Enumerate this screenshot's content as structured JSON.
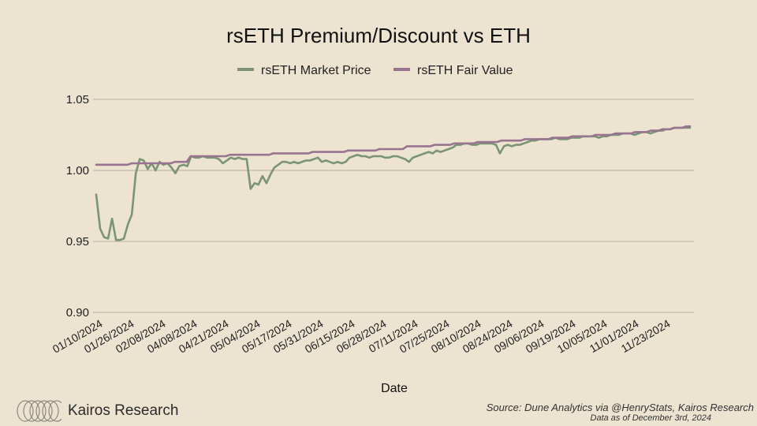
{
  "chart_data": {
    "type": "line",
    "title": "rsETH Premium/Discount vs ETH",
    "xlabel": "Date",
    "ylabel": "",
    "ylim": [
      0.9,
      1.05
    ],
    "yticks": [
      "1.05",
      "1.00",
      "0.95",
      "0.90"
    ],
    "x_tick_labels": [
      "01/10/2024",
      "01/26/2024",
      "02/08/2024",
      "04/08/2024",
      "04/21/2024",
      "05/04/2024",
      "05/17/2024",
      "05/31/2024",
      "06/15/2024",
      "06/28/2024",
      "07/11/2024",
      "07/25/2024",
      "08/10/2024",
      "08/24/2024",
      "09/06/2024",
      "09/19/2024",
      "10/05/2024",
      "11/01/2024",
      "11/23/2024"
    ],
    "legend_position": "top-center",
    "series": [
      {
        "name": "rsETH Market Price",
        "color": "#7a9474",
        "values": [
          0.983,
          0.959,
          0.953,
          0.952,
          0.966,
          0.951,
          0.951,
          0.952,
          0.962,
          0.969,
          0.998,
          1.008,
          1.007,
          1.001,
          1.005,
          1.0,
          1.006,
          1.004,
          1.005,
          1.002,
          0.998,
          1.003,
          1.004,
          1.003,
          1.01,
          1.009,
          1.009,
          1.01,
          1.009,
          1.009,
          1.009,
          1.008,
          1.005,
          1.007,
          1.009,
          1.008,
          1.009,
          1.008,
          1.008,
          0.987,
          0.991,
          0.99,
          0.996,
          0.991,
          0.997,
          1.002,
          1.004,
          1.006,
          1.006,
          1.005,
          1.006,
          1.005,
          1.006,
          1.007,
          1.007,
          1.008,
          1.009,
          1.006,
          1.007,
          1.006,
          1.005,
          1.006,
          1.005,
          1.006,
          1.009,
          1.01,
          1.011,
          1.01,
          1.01,
          1.009,
          1.01,
          1.01,
          1.01,
          1.009,
          1.009,
          1.01,
          1.01,
          1.009,
          1.008,
          1.006,
          1.009,
          1.01,
          1.011,
          1.012,
          1.013,
          1.012,
          1.014,
          1.013,
          1.014,
          1.015,
          1.016,
          1.018,
          1.018,
          1.019,
          1.019,
          1.018,
          1.018,
          1.019,
          1.019,
          1.019,
          1.019,
          1.018,
          1.012,
          1.017,
          1.018,
          1.017,
          1.018,
          1.018,
          1.019,
          1.02,
          1.021,
          1.021,
          1.022,
          1.022,
          1.022,
          1.022,
          1.023,
          1.022,
          1.022,
          1.022,
          1.023,
          1.023,
          1.023,
          1.024,
          1.024,
          1.024,
          1.024,
          1.023,
          1.024,
          1.024,
          1.025,
          1.025,
          1.025,
          1.026,
          1.026,
          1.026,
          1.025,
          1.026,
          1.027,
          1.027,
          1.026,
          1.027,
          1.028,
          1.028,
          1.029,
          1.029,
          1.03,
          1.03,
          1.03,
          1.03,
          1.03
        ]
      },
      {
        "name": "rsETH Fair Value",
        "color": "#977490",
        "values": [
          1.004,
          1.004,
          1.004,
          1.004,
          1.004,
          1.004,
          1.004,
          1.004,
          1.004,
          1.005,
          1.005,
          1.005,
          1.005,
          1.005,
          1.005,
          1.005,
          1.005,
          1.005,
          1.005,
          1.005,
          1.006,
          1.006,
          1.006,
          1.006,
          1.01,
          1.01,
          1.01,
          1.01,
          1.01,
          1.01,
          1.01,
          1.01,
          1.01,
          1.01,
          1.011,
          1.011,
          1.011,
          1.011,
          1.011,
          1.011,
          1.011,
          1.011,
          1.011,
          1.011,
          1.011,
          1.012,
          1.012,
          1.012,
          1.012,
          1.012,
          1.012,
          1.012,
          1.012,
          1.012,
          1.012,
          1.013,
          1.013,
          1.013,
          1.013,
          1.013,
          1.013,
          1.013,
          1.013,
          1.013,
          1.014,
          1.014,
          1.014,
          1.014,
          1.014,
          1.014,
          1.014,
          1.014,
          1.015,
          1.015,
          1.015,
          1.015,
          1.015,
          1.015,
          1.015,
          1.017,
          1.017,
          1.017,
          1.017,
          1.017,
          1.017,
          1.017,
          1.018,
          1.018,
          1.018,
          1.018,
          1.018,
          1.019,
          1.019,
          1.019,
          1.019,
          1.019,
          1.019,
          1.02,
          1.02,
          1.02,
          1.02,
          1.02,
          1.02,
          1.021,
          1.021,
          1.021,
          1.021,
          1.021,
          1.021,
          1.022,
          1.022,
          1.022,
          1.022,
          1.022,
          1.022,
          1.022,
          1.023,
          1.023,
          1.023,
          1.023,
          1.023,
          1.024,
          1.024,
          1.024,
          1.024,
          1.024,
          1.024,
          1.025,
          1.025,
          1.025,
          1.025,
          1.025,
          1.026,
          1.026,
          1.026,
          1.026,
          1.026,
          1.027,
          1.027,
          1.027,
          1.027,
          1.028,
          1.028,
          1.028,
          1.029,
          1.029,
          1.029,
          1.03,
          1.03,
          1.03,
          1.031,
          1.031
        ]
      }
    ]
  },
  "branding": {
    "logo_name": "Kairos Research",
    "logo_color": "#8c8a7e"
  },
  "source": {
    "line1": "Source: Dune Analytics via @HenryStats, Kairos Research",
    "line2": "Data as of December 3rd, 2024"
  },
  "colors": {
    "background": "#ece3d1",
    "grid": "#b9b09d"
  }
}
